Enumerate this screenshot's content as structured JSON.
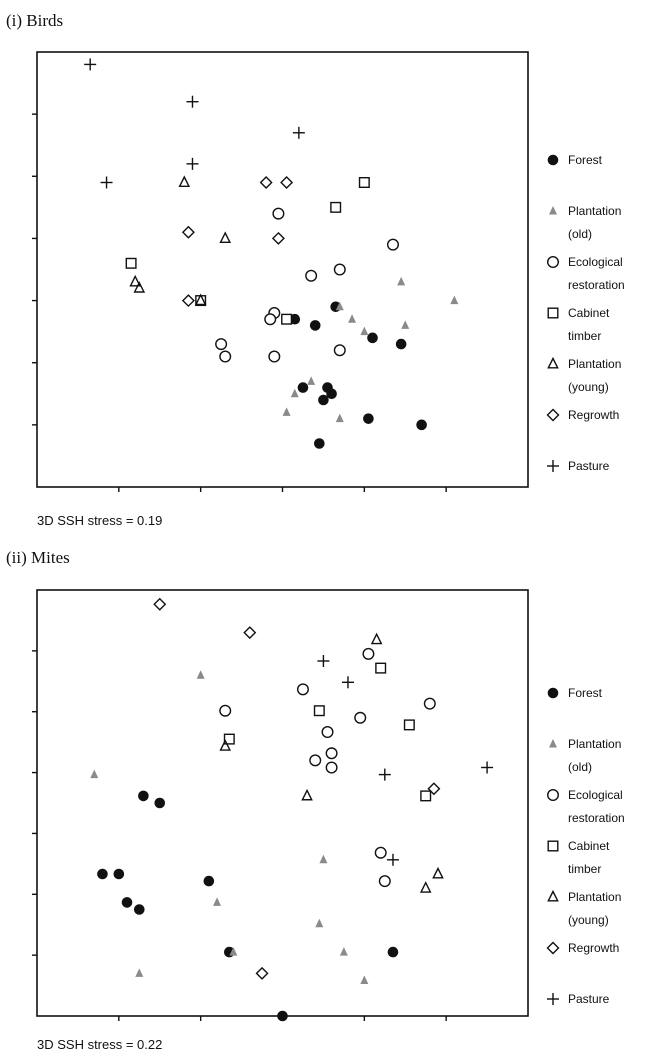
{
  "chart_data": [
    {
      "type": "scatter",
      "title": "(i) Birds",
      "note": "3D SSH  stress = 0.19",
      "xlim": [
        0,
        12
      ],
      "ylim": [
        0,
        7
      ],
      "legend_position": "right",
      "series": [
        {
          "name": "Forest",
          "marker": "circle-filled",
          "color": "#111111",
          "x": [
            6.3,
            6.8,
            7.3,
            6.5,
            7.2,
            7.1,
            8.2,
            8.9,
            7.0,
            8.1,
            9.4,
            6.9
          ],
          "y": [
            2.7,
            2.6,
            2.9,
            1.6,
            1.5,
            1.6,
            2.4,
            2.3,
            1.4,
            1.1,
            1.0,
            0.7
          ]
        },
        {
          "name": "Plantation (old)",
          "marker": "triangle-filled",
          "color": "#8a8a8a",
          "x": [
            8.9,
            10.2,
            7.4,
            7.7,
            8.0,
            9.0,
            6.7,
            6.3,
            6.1,
            7.4
          ],
          "y": [
            3.3,
            3.0,
            2.9,
            2.7,
            2.5,
            2.6,
            1.7,
            1.5,
            1.2,
            1.1
          ]
        },
        {
          "name": "Ecological restoration",
          "marker": "circle-open",
          "color": "#111111",
          "x": [
            5.9,
            8.7,
            7.4,
            6.7,
            5.8,
            5.7,
            4.5,
            4.6,
            5.8,
            7.4
          ],
          "y": [
            4.4,
            3.9,
            3.5,
            3.4,
            2.8,
            2.7,
            2.3,
            2.1,
            2.1,
            2.2
          ]
        },
        {
          "name": "Cabinet timber",
          "marker": "square-open",
          "color": "#111111",
          "x": [
            8.0,
            7.3,
            2.3,
            4.0,
            6.1
          ],
          "y": [
            4.9,
            4.5,
            3.6,
            3.0,
            2.7
          ]
        },
        {
          "name": "Plantation (young)",
          "marker": "triangle-open",
          "color": "#111111",
          "x": [
            3.6,
            4.6,
            2.4,
            2.5,
            4.0
          ],
          "y": [
            4.9,
            4.0,
            3.3,
            3.2,
            3.0
          ]
        },
        {
          "name": "Regrowth",
          "marker": "diamond-open",
          "color": "#111111",
          "x": [
            5.6,
            6.1,
            3.7,
            5.9,
            3.7
          ],
          "y": [
            4.9,
            4.9,
            4.1,
            4.0,
            3.0
          ]
        },
        {
          "name": "Pasture",
          "marker": "plus",
          "color": "#111111",
          "x": [
            1.3,
            3.8,
            6.4,
            3.8,
            1.7
          ],
          "y": [
            6.8,
            6.2,
            5.7,
            5.2,
            4.9
          ]
        }
      ]
    },
    {
      "type": "scatter",
      "title": "(ii) Mites",
      "note": "3D SSH stress = 0.22",
      "xlim": [
        0,
        12
      ],
      "ylim": [
        0,
        6
      ],
      "legend_position": "right",
      "series": [
        {
          "name": "Forest",
          "marker": "circle-filled",
          "color": "#111111",
          "x": [
            2.6,
            3.0,
            1.6,
            2.0,
            4.2,
            2.2,
            2.5,
            4.7,
            8.7,
            6.0
          ],
          "y": [
            3.1,
            3.0,
            2.0,
            2.0,
            1.9,
            1.6,
            1.5,
            0.9,
            0.9,
            0.0
          ]
        },
        {
          "name": "Plantation (old)",
          "marker": "triangle-filled",
          "color": "#8a8a8a",
          "x": [
            1.4,
            4.0,
            7.0,
            4.4,
            6.9,
            7.5,
            2.5,
            4.8,
            8.0
          ],
          "y": [
            3.4,
            4.8,
            2.2,
            1.6,
            1.3,
            0.9,
            0.6,
            0.9,
            0.5
          ]
        },
        {
          "name": "Ecological restoration",
          "marker": "circle-open",
          "color": "#111111",
          "x": [
            8.1,
            6.5,
            9.6,
            4.6,
            7.9,
            7.1,
            6.8,
            7.2,
            7.2,
            8.4,
            8.5
          ],
          "y": [
            5.1,
            4.6,
            4.4,
            4.3,
            4.2,
            4.0,
            3.6,
            3.5,
            3.7,
            2.3,
            1.9
          ]
        },
        {
          "name": "Cabinet timber",
          "marker": "square-open",
          "color": "#111111",
          "x": [
            8.4,
            6.9,
            9.1,
            4.7,
            9.5
          ],
          "y": [
            4.9,
            4.3,
            4.1,
            3.9,
            3.1
          ]
        },
        {
          "name": "Plantation (young)",
          "marker": "triangle-open",
          "color": "#111111",
          "x": [
            8.3,
            4.6,
            6.6,
            9.8,
            9.5
          ],
          "y": [
            5.3,
            3.8,
            3.1,
            2.0,
            1.8
          ]
        },
        {
          "name": "Regrowth",
          "marker": "diamond-open",
          "color": "#111111",
          "x": [
            3.0,
            5.2,
            9.7,
            5.5
          ],
          "y": [
            5.8,
            5.4,
            3.2,
            0.6
          ]
        },
        {
          "name": "Pasture",
          "marker": "plus",
          "color": "#111111",
          "x": [
            7.0,
            7.6,
            11.0,
            8.5,
            8.7
          ],
          "y": [
            5.0,
            4.7,
            3.5,
            3.4,
            2.2
          ]
        }
      ]
    }
  ],
  "legend_lines": [
    {
      "marker": "circle-filled",
      "lines": [
        "Forest"
      ]
    },
    {
      "marker": "triangle-filled",
      "lines": [
        "Plantation",
        "(old)"
      ]
    },
    {
      "marker": "circle-open",
      "lines": [
        "Ecological",
        "restoration"
      ]
    },
    {
      "marker": "square-open",
      "lines": [
        "Cabinet",
        "timber"
      ]
    },
    {
      "marker": "triangle-open",
      "lines": [
        "Plantation",
        "(young)"
      ]
    },
    {
      "marker": "diamond-open",
      "lines": [
        "Regrowth"
      ]
    },
    {
      "marker": "plus",
      "lines": [
        "Pasture"
      ]
    }
  ]
}
